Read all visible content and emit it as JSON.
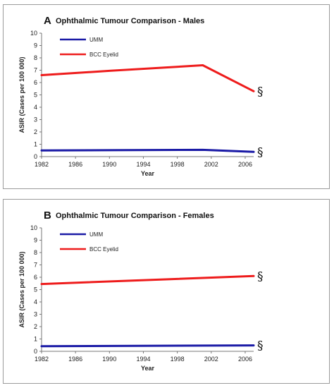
{
  "chart_data": [
    {
      "type": "line",
      "panel_letter": "A",
      "title": "Ophthalmic Tumour Comparison - Males",
      "xlabel": "Year",
      "ylabel": "ASIR (Cases per 100 000)",
      "xlim": [
        1982,
        2007
      ],
      "ylim": [
        0,
        10
      ],
      "x_ticks": [
        1982,
        1986,
        1990,
        1994,
        1998,
        2002,
        2006
      ],
      "y_ticks": [
        0,
        1,
        2,
        3,
        4,
        5,
        6,
        7,
        8,
        9,
        10
      ],
      "grid": false,
      "legend_position": "top-left",
      "series": [
        {
          "name": "UMM",
          "color": "#1a1aa6",
          "x": [
            1982,
            1990,
            2001,
            2007
          ],
          "y": [
            0.5,
            0.52,
            0.55,
            0.38
          ],
          "annotation": "§"
        },
        {
          "name": "BCC Eyelid",
          "color": "#ee1c1c",
          "x": [
            1982,
            1990,
            2001,
            2007
          ],
          "y": [
            6.6,
            6.95,
            7.4,
            5.3
          ],
          "annotation": "§"
        }
      ]
    },
    {
      "type": "line",
      "panel_letter": "B",
      "title": "Ophthalmic Tumour Comparison - Females",
      "xlabel": "Year",
      "ylabel": "ASIR (Cases per 100 000)",
      "xlim": [
        1982,
        2007
      ],
      "ylim": [
        0,
        10
      ],
      "x_ticks": [
        1982,
        1986,
        1990,
        1994,
        1998,
        2002,
        2006
      ],
      "y_ticks": [
        0,
        1,
        2,
        3,
        4,
        5,
        6,
        7,
        8,
        9,
        10
      ],
      "grid": false,
      "legend_position": "top-left",
      "series": [
        {
          "name": "UMM",
          "color": "#1a1aa6",
          "x": [
            1982,
            2007
          ],
          "y": [
            0.42,
            0.48
          ],
          "annotation": "§"
        },
        {
          "name": "BCC Eyelid",
          "color": "#ee1c1c",
          "x": [
            1982,
            2007
          ],
          "y": [
            5.45,
            6.1
          ],
          "annotation": "§"
        }
      ]
    }
  ]
}
